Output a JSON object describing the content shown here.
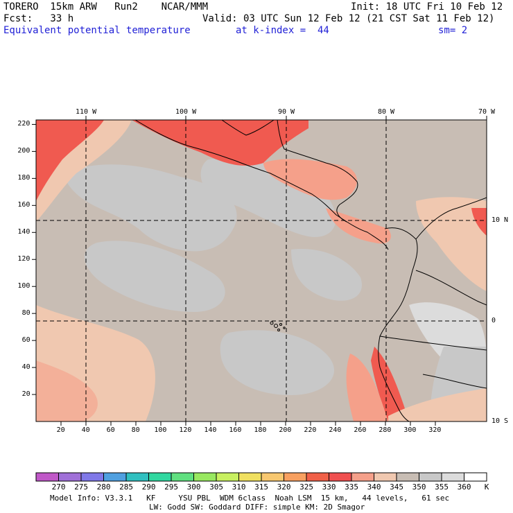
{
  "header": {
    "left1": "TORERO  15km ARW   Run2    NCAR/MMM",
    "right1": "Init: 18 UTC Fri 10 Feb 12",
    "left2": "Fcst:   33 h",
    "right2": "Valid: 03 UTC Sun 12 Feb 12 (21 CST Sat 11 Feb 12)",
    "field": "Equivalent potential temperature",
    "level": "at k-index =  44",
    "smooth": "sm= 2"
  },
  "map": {
    "lon_labels": [
      "110 W",
      "100 W",
      "90 W",
      "80 W",
      "70 W"
    ],
    "lat_labels": [
      "10 N",
      "0",
      "10 S"
    ],
    "x_ticks": [
      "20",
      "40",
      "60",
      "80",
      "100",
      "120",
      "140",
      "160",
      "180",
      "200",
      "220",
      "240",
      "260",
      "280",
      "300",
      "320"
    ],
    "y_ticks": [
      "20",
      "40",
      "60",
      "80",
      "100",
      "120",
      "140",
      "160",
      "180",
      "200",
      "220"
    ],
    "colors": {
      "land_outline": "#000000",
      "ocean_low": "#c8c8c8",
      "ocean_mid": "#c8bdb4",
      "warm_1": "#f0c8b0",
      "warm_2": "#f5a08a",
      "warm_3": "#f05a50",
      "warm_4": "#f04848"
    }
  },
  "colorbar": {
    "labels": [
      "270",
      "275",
      "280",
      "285",
      "290",
      "295",
      "300",
      "305",
      "310",
      "315",
      "320",
      "325",
      "330",
      "335",
      "340",
      "345",
      "350",
      "355",
      "360",
      "K"
    ],
    "colors": [
      "#c058c8",
      "#a070d8",
      "#8078e8",
      "#50a0e0",
      "#30c0c0",
      "#30d8a0",
      "#60e080",
      "#98e860",
      "#c8f060",
      "#f0e060",
      "#f8c870",
      "#f8a060",
      "#f06048",
      "#f05050",
      "#f5a08a",
      "#f0c8b0",
      "#c8bdb4",
      "#c8c8c8",
      "#dcdcdc",
      "#ffffff"
    ]
  },
  "footer": {
    "line1": "Model Info: V3.3.1   KF     YSU PBL  WDM 6class  Noah LSM  15 km,   44 levels,   61 sec",
    "line2": "LW: Godd SW: Goddard DIFF: simple KM: 2D Smagor"
  }
}
